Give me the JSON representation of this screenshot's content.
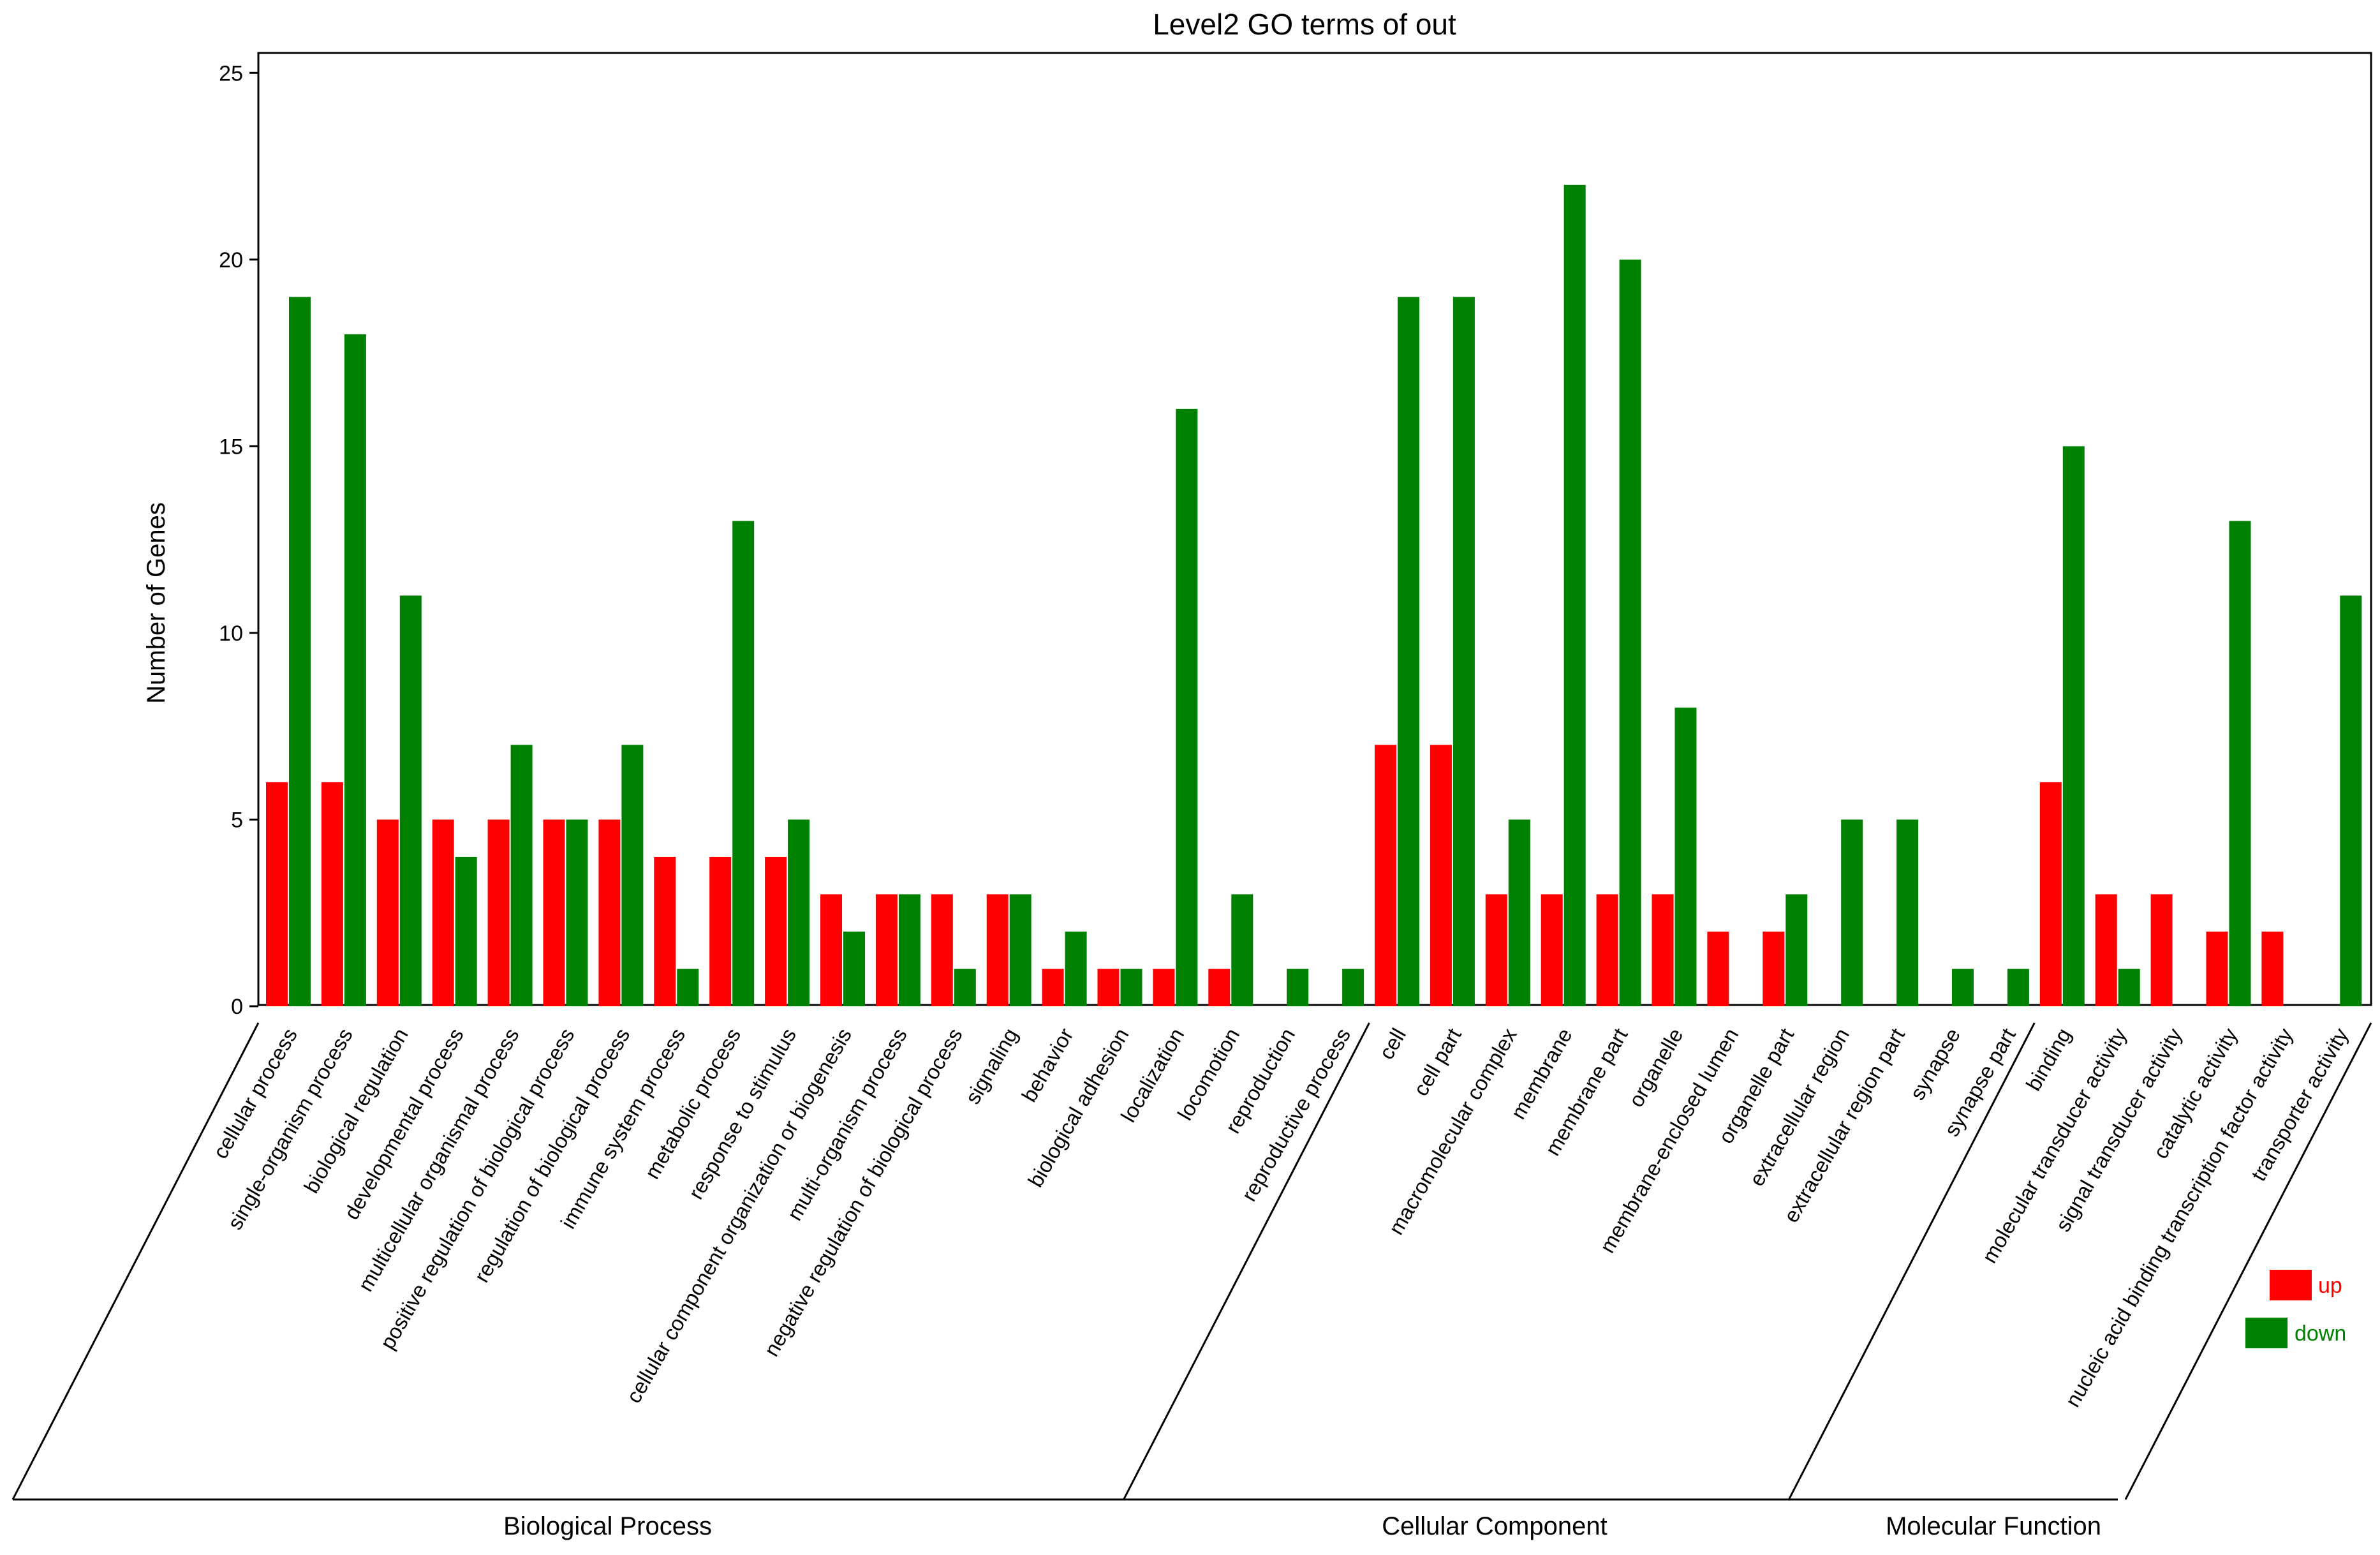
{
  "chart_data": {
    "type": "bar",
    "title": "Level2 GO terms of out",
    "xlabel": "",
    "ylabel": "Number of Genes",
    "ylim": [
      0,
      25.5
    ],
    "yticks": [
      "0",
      "5",
      "10",
      "15",
      "20",
      "25"
    ],
    "ytick_values": [
      0,
      5,
      10,
      15,
      20,
      25
    ],
    "legend_position": "bottom-right",
    "colors": {
      "up": "#ff0000",
      "down": "#008000"
    },
    "categories": [
      "cellular process",
      "single-organism process",
      "biological regulation",
      "developmental process",
      "multicellular organismal process",
      "positive regulation of biological process",
      "regulation of biological process",
      "immune system process",
      "metabolic process",
      "response to stimulus",
      "cellular component organization or biogenesis",
      "multi-organism process",
      "negative regulation of biological process",
      "signaling",
      "behavior",
      "biological adhesion",
      "localization",
      "locomotion",
      "reproduction",
      "reproductive process",
      "cell",
      "cell part",
      "macromolecular complex",
      "membrane",
      "membrane part",
      "organelle",
      "membrane-enclosed lumen",
      "organelle part",
      "extracellular region",
      "extracellular region part",
      "synapse",
      "synapse part",
      "binding",
      "molecular transducer activity",
      "signal transducer activity",
      "catalytic activity",
      "nucleic acid binding transcription factor activity",
      "transporter activity"
    ],
    "series": [
      {
        "name": "up",
        "values": [
          6,
          6,
          5,
          5,
          5,
          5,
          5,
          4,
          4,
          4,
          3,
          3,
          3,
          3,
          1,
          1,
          1,
          1,
          0,
          0,
          7,
          7,
          3,
          3,
          3,
          3,
          2,
          2,
          0,
          0,
          0,
          0,
          6,
          3,
          3,
          2,
          2,
          0
        ]
      },
      {
        "name": "down",
        "values": [
          19,
          18,
          11,
          4,
          7,
          5,
          7,
          1,
          13,
          5,
          2,
          3,
          1,
          3,
          2,
          1,
          16,
          3,
          1,
          1,
          19,
          19,
          5,
          22,
          20,
          8,
          0,
          3,
          5,
          5,
          1,
          1,
          15,
          1,
          0,
          13,
          0,
          11
        ]
      }
    ],
    "groups": [
      {
        "name": "Biological Process",
        "start": 0,
        "end": 19
      },
      {
        "name": "Cellular Component",
        "start": 20,
        "end": 31
      },
      {
        "name": "Molecular Function",
        "start": 32,
        "end": 37
      }
    ]
  }
}
